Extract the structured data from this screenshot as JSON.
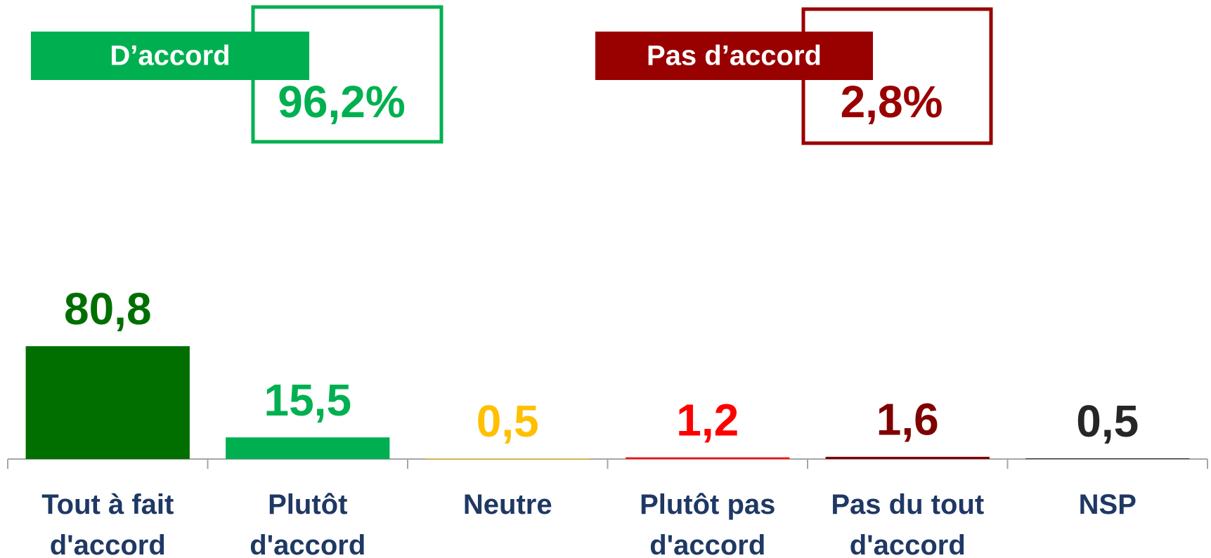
{
  "chart_data": {
    "type": "bar",
    "categories": [
      "Tout à fait d'accord",
      "Plutôt d'accord",
      "Neutre",
      "Plutôt pas d'accord",
      "Pas du tout d'accord",
      "NSP"
    ],
    "values": [
      80.8,
      15.5,
      0.5,
      1.2,
      1.6,
      0.5
    ],
    "value_labels": [
      "80,8",
      "15,5",
      "0,5",
      "1,2",
      "1,6",
      "0,5"
    ],
    "colors": [
      "#006f00",
      "#00b050",
      "#ffc000",
      "#ff0000",
      "#7f0000",
      "#262626"
    ],
    "ylim": [
      0,
      100
    ],
    "annotations": [
      {
        "title": "D’accord",
        "text": "96,2%",
        "color": "#00b050"
      },
      {
        "title": "Pas d’accord",
        "text": "2,8%",
        "color": "#990000"
      }
    ]
  }
}
